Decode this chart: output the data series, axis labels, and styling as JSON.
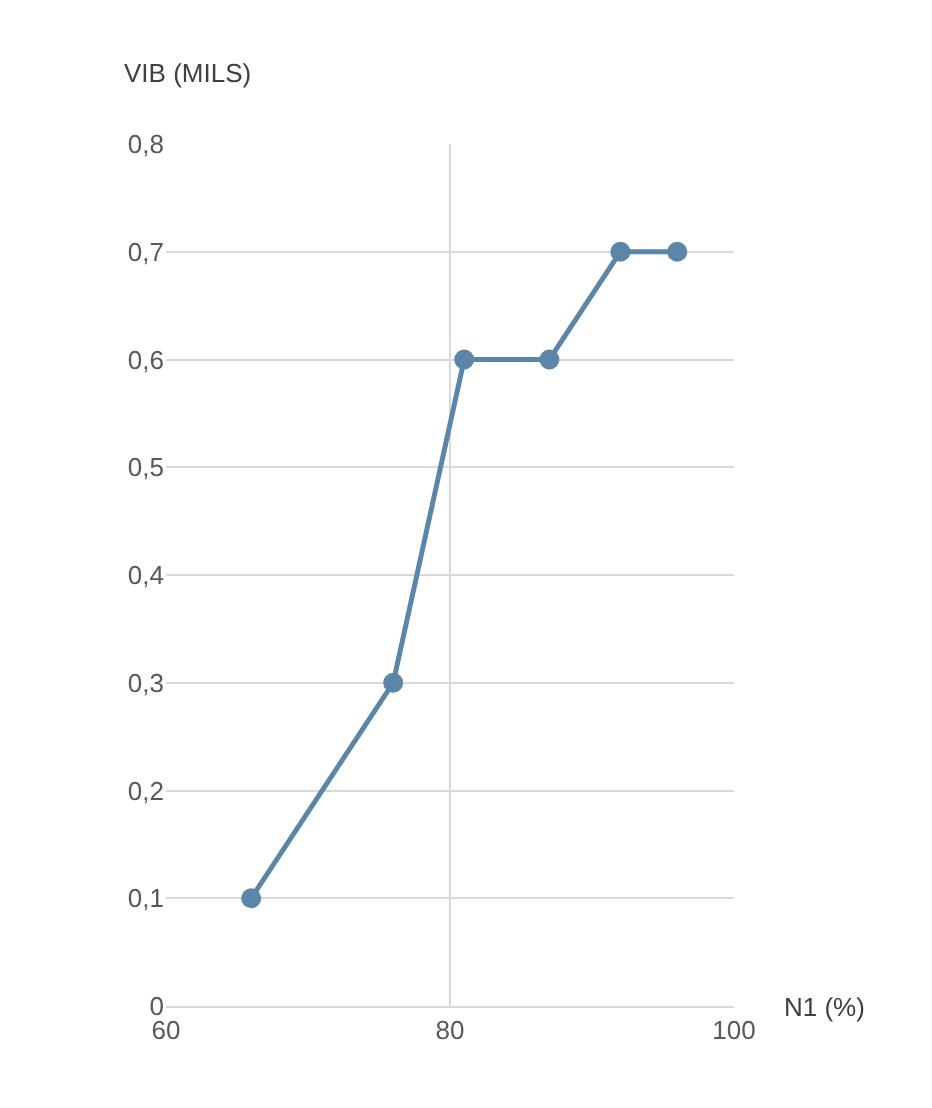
{
  "chart_data": {
    "type": "line",
    "xlabel": "N1 (%)",
    "ylabel": "VIB (MILS)",
    "x": [
      66,
      76,
      81,
      87,
      92,
      96
    ],
    "series": [
      {
        "color": "#5b86a8",
        "values": [
          0.1,
          0.3,
          0.6,
          0.6,
          0.7,
          0.7
        ]
      }
    ],
    "xlim": [
      60,
      100
    ],
    "xticks": [
      60,
      80,
      100
    ],
    "ylim": [
      0,
      0.8
    ],
    "yticks": [
      0,
      {
        "value": 0.1,
        "label": "0,1"
      },
      {
        "value": 0.2,
        "label": "0,2"
      },
      {
        "value": 0.3,
        "label": "0,3"
      },
      {
        "value": 0.4,
        "label": "0,4"
      },
      {
        "value": 0.5,
        "label": "0,5"
      },
      {
        "value": 0.6,
        "label": "0,6"
      },
      {
        "value": 0.7,
        "label": "0,7"
      },
      {
        "value": 0.8,
        "label": "0,8"
      }
    ],
    "grid": true,
    "marker": "circle",
    "line_style": "solid"
  }
}
